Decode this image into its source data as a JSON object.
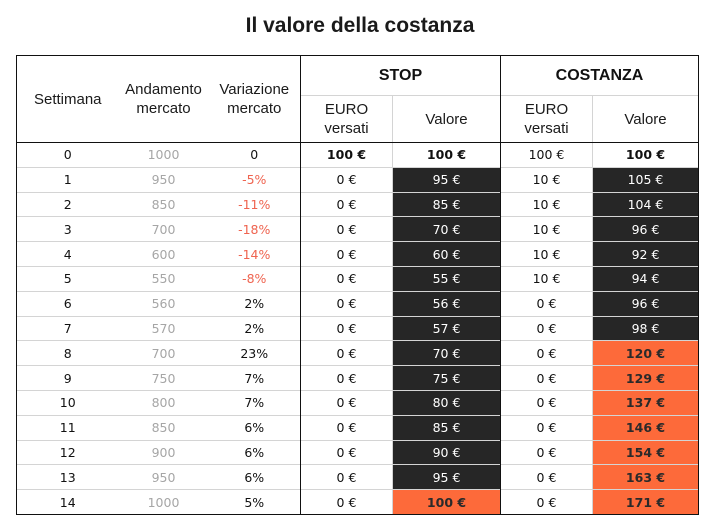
{
  "title": "Il valore della costanza",
  "headers": {
    "week": "Settimana",
    "market_trend": "Andamento mercato",
    "market_change": "Variazione mercato",
    "stop_group": "STOP",
    "costanza_group": "COSTANZA",
    "euro_paid": "EURO versati",
    "value": "Valore"
  },
  "colors": {
    "dark_cell": "#262626",
    "orange_cell": "#fd6a3a",
    "negative_text": "#ef6450",
    "market_text": "#a6a6a6"
  },
  "rows": [
    {
      "week": "0",
      "market": "1000",
      "change": "0",
      "stop_paid": "100 €",
      "stop_value": "100 €",
      "cost_paid": "100 €",
      "cost_value": "100 €",
      "negative": false,
      "stop_style": "white",
      "cost_style": "white"
    },
    {
      "week": "1",
      "market": "950",
      "change": "-5%",
      "stop_paid": "0 €",
      "stop_value": "95 €",
      "cost_paid": "10 €",
      "cost_value": "105 €",
      "negative": true,
      "stop_style": "dark",
      "cost_style": "dark"
    },
    {
      "week": "2",
      "market": "850",
      "change": "-11%",
      "stop_paid": "0 €",
      "stop_value": "85 €",
      "cost_paid": "10 €",
      "cost_value": "104 €",
      "negative": true,
      "stop_style": "dark",
      "cost_style": "dark"
    },
    {
      "week": "3",
      "market": "700",
      "change": "-18%",
      "stop_paid": "0 €",
      "stop_value": "70 €",
      "cost_paid": "10 €",
      "cost_value": "96 €",
      "negative": true,
      "stop_style": "dark",
      "cost_style": "dark"
    },
    {
      "week": "4",
      "market": "600",
      "change": "-14%",
      "stop_paid": "0 €",
      "stop_value": "60 €",
      "cost_paid": "10 €",
      "cost_value": "92 €",
      "negative": true,
      "stop_style": "dark",
      "cost_style": "dark"
    },
    {
      "week": "5",
      "market": "550",
      "change": "-8%",
      "stop_paid": "0 €",
      "stop_value": "55 €",
      "cost_paid": "10 €",
      "cost_value": "94 €",
      "negative": true,
      "stop_style": "dark",
      "cost_style": "dark"
    },
    {
      "week": "6",
      "market": "560",
      "change": "2%",
      "stop_paid": "0 €",
      "stop_value": "56 €",
      "cost_paid": "0 €",
      "cost_value": "96 €",
      "negative": false,
      "stop_style": "dark",
      "cost_style": "dark"
    },
    {
      "week": "7",
      "market": "570",
      "change": "2%",
      "stop_paid": "0 €",
      "stop_value": "57 €",
      "cost_paid": "0 €",
      "cost_value": "98 €",
      "negative": false,
      "stop_style": "dark",
      "cost_style": "dark"
    },
    {
      "week": "8",
      "market": "700",
      "change": "23%",
      "stop_paid": "0 €",
      "stop_value": "70 €",
      "cost_paid": "0 €",
      "cost_value": "120 €",
      "negative": false,
      "stop_style": "dark",
      "cost_style": "orange"
    },
    {
      "week": "9",
      "market": "750",
      "change": "7%",
      "stop_paid": "0 €",
      "stop_value": "75 €",
      "cost_paid": "0 €",
      "cost_value": "129 €",
      "negative": false,
      "stop_style": "dark",
      "cost_style": "orange"
    },
    {
      "week": "10",
      "market": "800",
      "change": "7%",
      "stop_paid": "0 €",
      "stop_value": "80 €",
      "cost_paid": "0 €",
      "cost_value": "137 €",
      "negative": false,
      "stop_style": "dark",
      "cost_style": "orange"
    },
    {
      "week": "11",
      "market": "850",
      "change": "6%",
      "stop_paid": "0 €",
      "stop_value": "85 €",
      "cost_paid": "0 €",
      "cost_value": "146 €",
      "negative": false,
      "stop_style": "dark",
      "cost_style": "orange"
    },
    {
      "week": "12",
      "market": "900",
      "change": "6%",
      "stop_paid": "0 €",
      "stop_value": "90 €",
      "cost_paid": "0 €",
      "cost_value": "154 €",
      "negative": false,
      "stop_style": "dark",
      "cost_style": "orange"
    },
    {
      "week": "13",
      "market": "950",
      "change": "6%",
      "stop_paid": "0 €",
      "stop_value": "95 €",
      "cost_paid": "0 €",
      "cost_value": "163 €",
      "negative": false,
      "stop_style": "dark",
      "cost_style": "orange"
    },
    {
      "week": "14",
      "market": "1000",
      "change": "5%",
      "stop_paid": "0 €",
      "stop_value": "100 €",
      "cost_paid": "0 €",
      "cost_value": "171 €",
      "negative": false,
      "stop_style": "orange",
      "cost_style": "orange"
    }
  ]
}
